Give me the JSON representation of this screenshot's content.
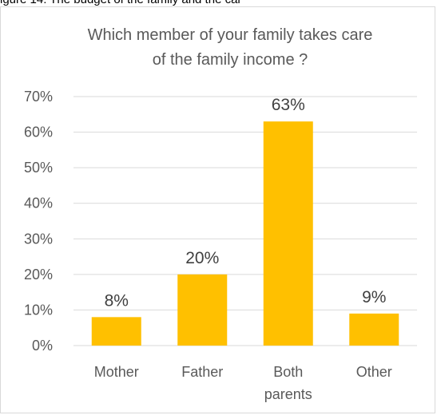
{
  "caption": "igure 14: The budget of the family and the car",
  "chart_data": {
    "type": "bar",
    "title_lines": [
      "Which member of your family takes care",
      "of the family income ?"
    ],
    "categories": [
      [
        "Mother"
      ],
      [
        "Father"
      ],
      [
        "Both",
        "parents"
      ],
      [
        "Other"
      ]
    ],
    "values": [
      8,
      20,
      63,
      9
    ],
    "data_labels": [
      "8%",
      "20%",
      "63%",
      "9%"
    ],
    "ylim": [
      0,
      70
    ],
    "yticks": [
      "0%",
      "10%",
      "20%",
      "30%",
      "40%",
      "50%",
      "60%",
      "70%"
    ],
    "grid": true,
    "legend": "none",
    "bar_color": "#ffc000",
    "grid_color": "#d9d9d9"
  }
}
